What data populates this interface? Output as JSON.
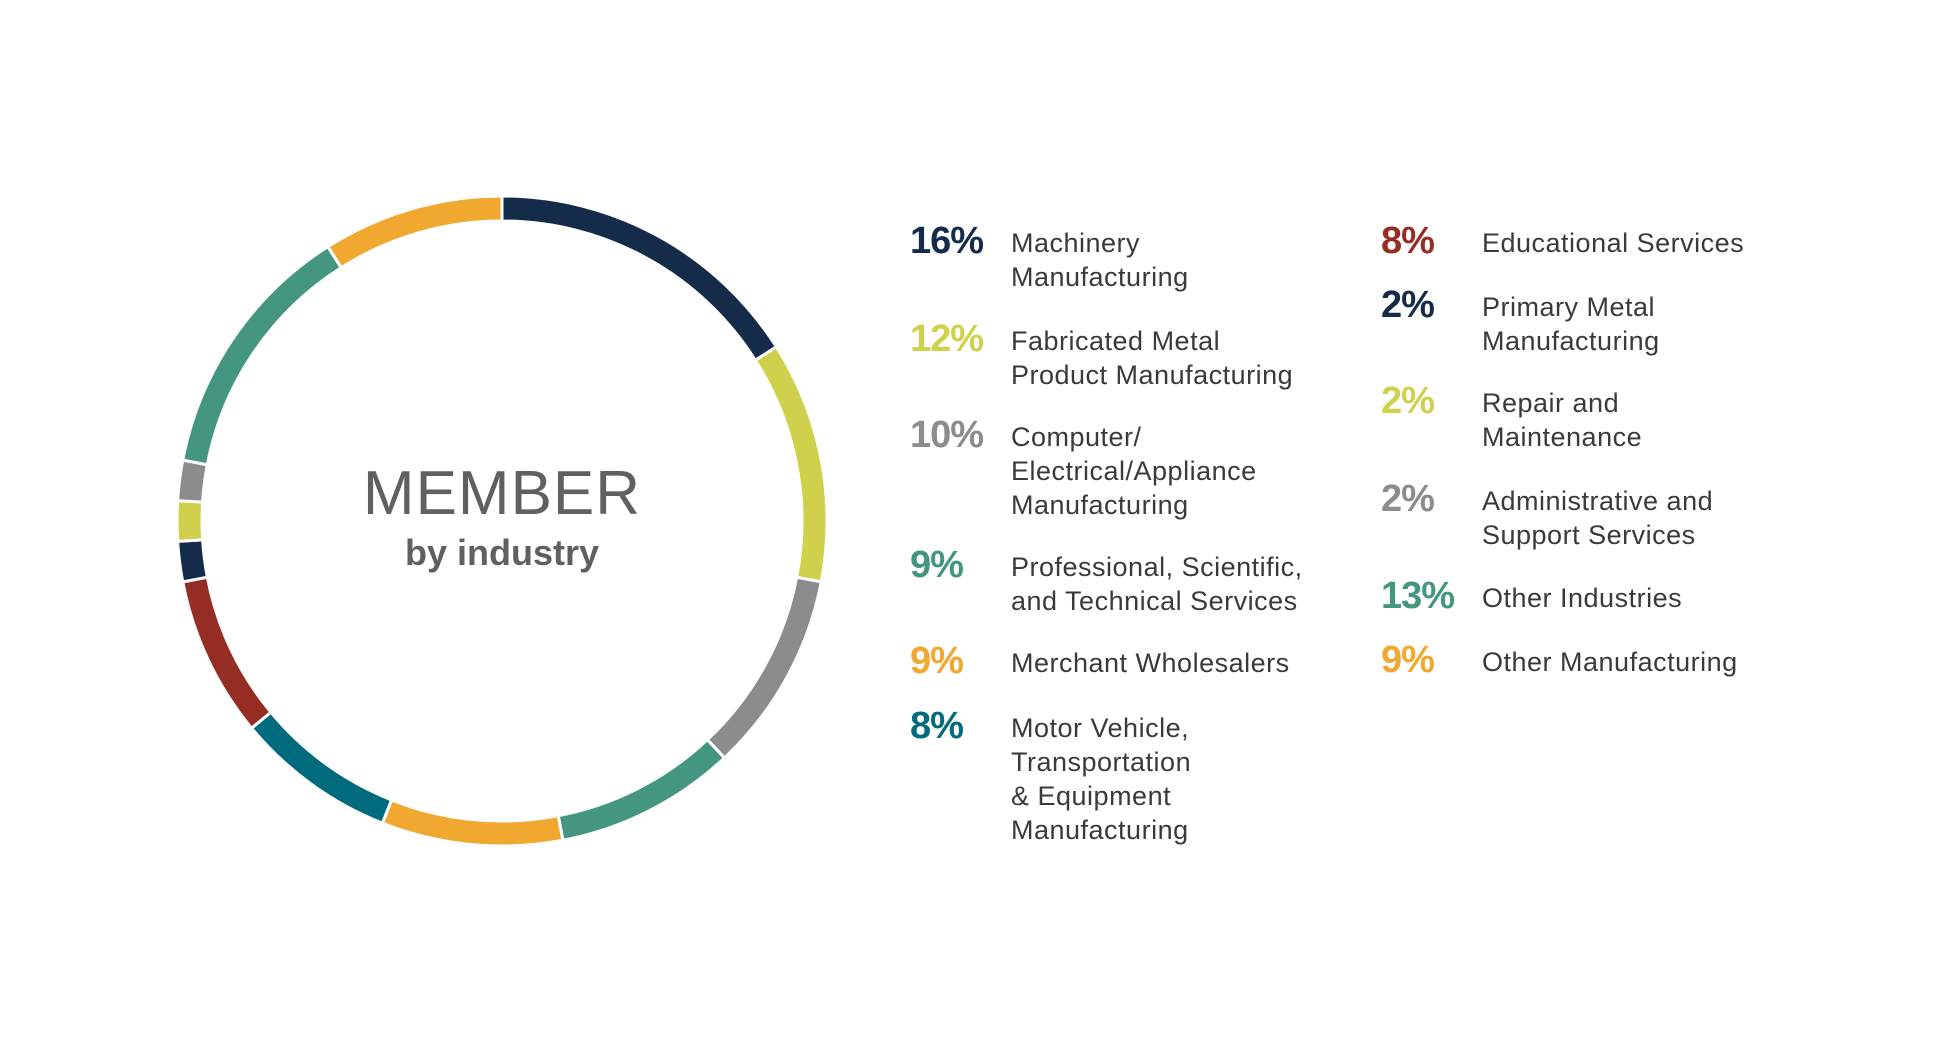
{
  "chart_data": {
    "type": "pie",
    "variant": "donut",
    "title": "MEMBER",
    "subtitle": "by industry",
    "unit": "%",
    "segments_clockwise_from_top": [
      {
        "label": "Machinery\nManufacturing",
        "value": 16,
        "pct_text": "16%",
        "color": "#152B4A",
        "legend_column": 0
      },
      {
        "label": "Fabricated Metal\nProduct Manufacturing",
        "value": 12,
        "pct_text": "12%",
        "color": "#CFD04B",
        "legend_column": 0
      },
      {
        "label": "Computer/\nElectrical/Appliance\nManufacturing",
        "value": 10,
        "pct_text": "10%",
        "color": "#8C8C8C",
        "legend_column": 0
      },
      {
        "label": "Professional, Scientific,\nand Technical Services",
        "value": 9,
        "pct_text": "9%",
        "color": "#459680",
        "legend_column": 0
      },
      {
        "label": "Merchant Wholesalers",
        "value": 9,
        "pct_text": "9%",
        "color": "#F0A830",
        "legend_column": 0
      },
      {
        "label": "Motor Vehicle,\nTransportation\n& Equipment\nManufacturing",
        "value": 8,
        "pct_text": "8%",
        "color": "#006B7D",
        "legend_column": 0
      },
      {
        "label": "Educational Services",
        "value": 8,
        "pct_text": "8%",
        "color": "#962D25",
        "legend_column": 1
      },
      {
        "label": "Primary Metal\nManufacturing",
        "value": 2,
        "pct_text": "2%",
        "color": "#152B4A",
        "legend_column": 1
      },
      {
        "label": "Repair and\nMaintenance",
        "value": 2,
        "pct_text": "2%",
        "color": "#CFD04B",
        "legend_column": 1
      },
      {
        "label": "Administrative and\nSupport Services",
        "value": 2,
        "pct_text": "2%",
        "color": "#8C8C8C",
        "legend_column": 1
      },
      {
        "label": "Other Industries",
        "value": 13,
        "pct_text": "13%",
        "color": "#459680",
        "legend_column": 1
      },
      {
        "label": "Other Manufacturing",
        "value": 9,
        "pct_text": "9%",
        "color": "#F0A830",
        "legend_column": 1
      }
    ],
    "legend_placement": "right"
  }
}
